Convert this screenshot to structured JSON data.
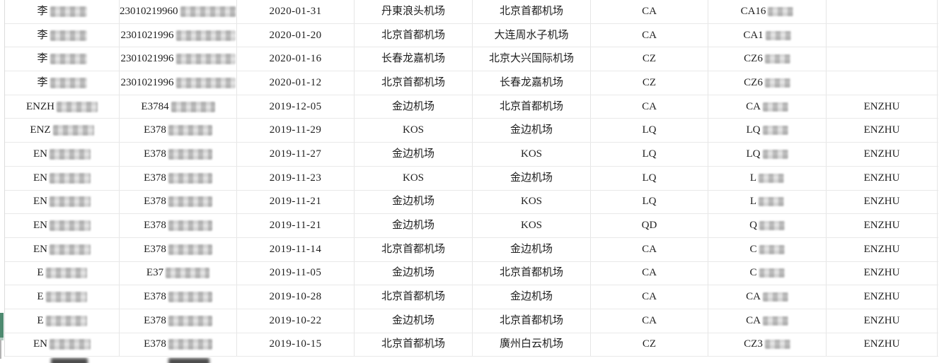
{
  "colors": {
    "background": "#ffffff",
    "grid_line": "#e8e8e8",
    "text": "#1f1f1f",
    "scrollbar_green": "#4e8a70",
    "redaction_dark": "#4d4d4d"
  },
  "table": {
    "columns_semantic": [
      "name",
      "id",
      "date",
      "from",
      "to",
      "airline",
      "flight",
      "holder"
    ],
    "rows": [
      {
        "name": "李",
        "id": "23010219960",
        "date": "2020-01-31",
        "from": "丹東浪头机场",
        "to": "北京首都机场",
        "airline": "CA",
        "flight": "CA16",
        "holder": ""
      },
      {
        "name": "李",
        "id": "2301021996",
        "date": "2020-01-20",
        "from": "北京首都机场",
        "to": "大连周水子机场",
        "airline": "CA",
        "flight": "CA1",
        "holder": ""
      },
      {
        "name": "李",
        "id": "2301021996",
        "date": "2020-01-16",
        "from": "长春龙嘉机场",
        "to": "北京大兴国际机场",
        "airline": "CZ",
        "flight": "CZ6",
        "holder": ""
      },
      {
        "name": "李",
        "id": "2301021996",
        "date": "2020-01-12",
        "from": "北京首都机场",
        "to": "长春龙嘉机场",
        "airline": "CZ",
        "flight": "CZ6",
        "holder": ""
      },
      {
        "name": "ENZH",
        "id": "E3784",
        "date": "2019-12-05",
        "from": "金边机场",
        "to": "北京首都机场",
        "airline": "CA",
        "flight": "CA",
        "holder": "ENZHU"
      },
      {
        "name": "ENZ",
        "id": "E378",
        "date": "2019-11-29",
        "from": "KOS",
        "to": "金边机场",
        "airline": "LQ",
        "flight": "LQ",
        "holder": "ENZHU"
      },
      {
        "name": "EN",
        "id": "E378",
        "date": "2019-11-27",
        "from": "金边机场",
        "to": "KOS",
        "airline": "LQ",
        "flight": "LQ",
        "holder": "ENZHU"
      },
      {
        "name": "EN",
        "id": "E378",
        "date": "2019-11-23",
        "from": "KOS",
        "to": "金边机场",
        "airline": "LQ",
        "flight": "L",
        "holder": "ENZHU"
      },
      {
        "name": "EN",
        "id": "E378",
        "date": "2019-11-21",
        "from": "金边机场",
        "to": "KOS",
        "airline": "LQ",
        "flight": "L",
        "holder": "ENZHU"
      },
      {
        "name": "EN",
        "id": "E378",
        "date": "2019-11-21",
        "from": "金边机场",
        "to": "KOS",
        "airline": "QD",
        "flight": "Q",
        "holder": "ENZHU"
      },
      {
        "name": "EN",
        "id": "E378",
        "date": "2019-11-14",
        "from": "北京首都机场",
        "to": "金边机场",
        "airline": "CA",
        "flight": "C",
        "holder": "ENZHU"
      },
      {
        "name": "E",
        "id": "E37",
        "date": "2019-11-05",
        "from": "金边机场",
        "to": "北京首都机场",
        "airline": "CA",
        "flight": "C",
        "holder": "ENZHU"
      },
      {
        "name": "E",
        "id": "E378",
        "date": "2019-10-28",
        "from": "北京首都机场",
        "to": "金边机场",
        "airline": "CA",
        "flight": "CA",
        "holder": "ENZHU"
      },
      {
        "name": "E",
        "id": "E378",
        "date": "2019-10-22",
        "from": "金边机场",
        "to": "北京首都机场",
        "airline": "CA",
        "flight": "CA",
        "holder": "ENZHU"
      },
      {
        "name": "EN",
        "id": "E378",
        "date": "2019-10-15",
        "from": "北京首都机场",
        "to": "廣州白云机场",
        "airline": "CZ",
        "flight": "CZ3",
        "holder": "ENZHU"
      }
    ],
    "redacted_fields": [
      "name",
      "id",
      "flight"
    ],
    "partial_bottom_row": {
      "visible": true,
      "redacted_cells": 2
    }
  }
}
